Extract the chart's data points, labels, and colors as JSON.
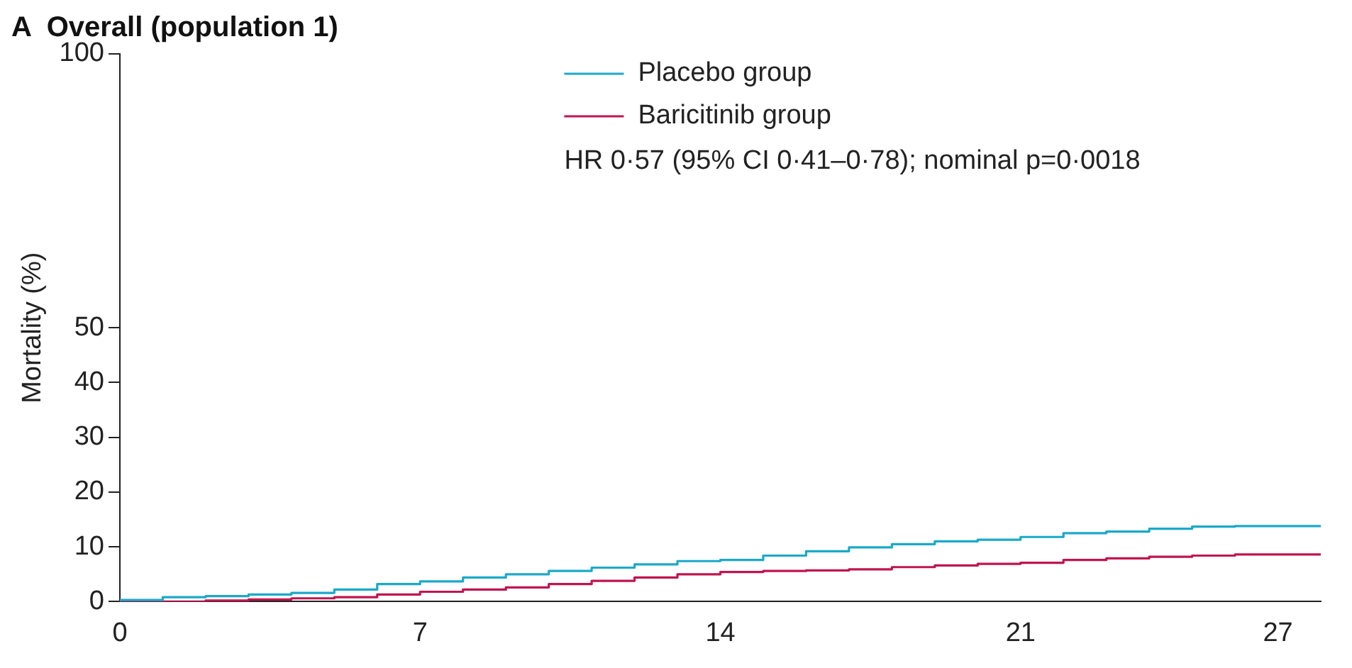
{
  "chart_data": {
    "type": "step",
    "title": "A  Overall (population 1)",
    "ylabel": "Mortality (%)",
    "xlim": [
      0,
      28
    ],
    "xticks": [
      0,
      7,
      14,
      21,
      27
    ],
    "ylim": [
      0,
      100
    ],
    "yticks": [
      0,
      10,
      20,
      30,
      40,
      50,
      100
    ],
    "x": [
      0,
      1,
      2,
      3,
      4,
      5,
      6,
      7,
      8,
      9,
      10,
      11,
      12,
      13,
      14,
      15,
      16,
      17,
      18,
      19,
      20,
      21,
      22,
      23,
      24,
      25,
      26,
      27,
      28
    ],
    "series": [
      {
        "name": "Placebo group",
        "color": "#1ba9c9",
        "values": [
          0,
          0.3,
          0.8,
          1.0,
          1.3,
          1.6,
          2.2,
          3.2,
          3.7,
          4.4,
          5.0,
          5.6,
          6.2,
          6.8,
          7.4,
          7.6,
          8.4,
          9.2,
          9.9,
          10.5,
          11.0,
          11.3,
          11.8,
          12.5,
          12.8,
          13.3,
          13.7,
          13.8,
          13.8
        ]
      },
      {
        "name": "Baricitinib group",
        "color": "#c0154f",
        "values": [
          0,
          0,
          0,
          0.2,
          0.4,
          0.6,
          0.8,
          1.3,
          1.8,
          2.2,
          2.6,
          3.2,
          3.8,
          4.4,
          5.0,
          5.4,
          5.6,
          5.7,
          5.9,
          6.3,
          6.6,
          6.9,
          7.1,
          7.6,
          7.9,
          8.2,
          8.4,
          8.6,
          8.6
        ]
      }
    ],
    "legend": "top right",
    "grid": false,
    "annotations": [
      "HR 0·57 (95% CI 0·41–0·78); nominal p=0·0018"
    ]
  }
}
